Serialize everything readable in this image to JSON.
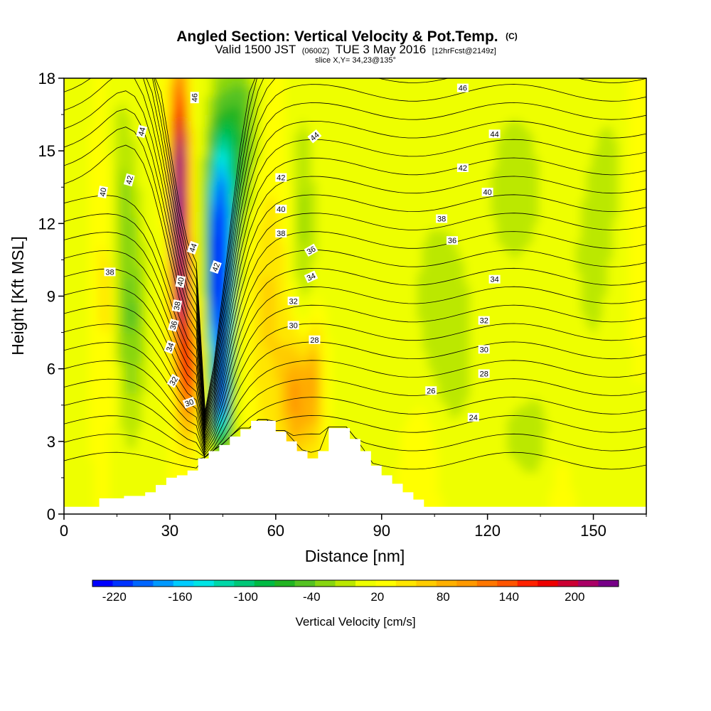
{
  "chart_data": {
    "type": "heatmap",
    "title": "Angled Section: Vertical Velocity & Pot.Temp.",
    "title_mark": "(C)",
    "subtitle_prefix": "Valid 1500 JST",
    "subtitle_utc": "(0600Z)",
    "subtitle_date": "TUE 3 May 2016",
    "subtitle_fcst": "[12hrFcst@2149z]",
    "slice_label": "slice X,Y= 34,23@135°",
    "xlabel": "Distance [nm]",
    "ylabel": "Height [Kft MSL]",
    "xlim": [
      0,
      165
    ],
    "ylim": [
      0,
      18
    ],
    "xticks": [
      "0",
      "30",
      "60",
      "90",
      "120",
      "150"
    ],
    "xtick_values": [
      0,
      30,
      60,
      90,
      120,
      150
    ],
    "yticks": [
      "0",
      "3",
      "6",
      "9",
      "12",
      "15",
      "18"
    ],
    "ytick_values": [
      0,
      3,
      6,
      9,
      12,
      15,
      18
    ],
    "colorbar": {
      "title": "Vertical Velocity [cm/s]",
      "labels": [
        "-220",
        "-160",
        "-100",
        "-40",
        "20",
        "80",
        "140",
        "200"
      ],
      "label_values": [
        -220,
        -160,
        -100,
        -40,
        20,
        80,
        140,
        200
      ],
      "range": [
        -240,
        240
      ],
      "colors": [
        "#0000ff",
        "#0033ff",
        "#0066ff",
        "#0099ff",
        "#00ccff",
        "#00e5e5",
        "#00d8a8",
        "#00c878",
        "#00bb44",
        "#22b422",
        "#55c222",
        "#88d611",
        "#bbe800",
        "#eeff00",
        "#ffff00",
        "#ffe600",
        "#ffcc00",
        "#ffb000",
        "#ff9900",
        "#ff7700",
        "#ff5500",
        "#ff2200",
        "#ee0000",
        "#cc0033",
        "#aa0066",
        "#770088"
      ]
    },
    "terrain_kft": [
      [
        0,
        0.3
      ],
      [
        10,
        0.3
      ],
      [
        10,
        0.65
      ],
      [
        17,
        0.65
      ],
      [
        17,
        0.75
      ],
      [
        23,
        0.75
      ],
      [
        23,
        0.9
      ],
      [
        26,
        0.9
      ],
      [
        26,
        1.2
      ],
      [
        29,
        1.2
      ],
      [
        29,
        1.5
      ],
      [
        32,
        1.5
      ],
      [
        32,
        1.6
      ],
      [
        35,
        1.6
      ],
      [
        35,
        1.8
      ],
      [
        38,
        1.8
      ],
      [
        38,
        2.3
      ],
      [
        41,
        2.3
      ],
      [
        41,
        2.6
      ],
      [
        44,
        2.6
      ],
      [
        44,
        2.85
      ],
      [
        47,
        2.85
      ],
      [
        47,
        3.2
      ],
      [
        50,
        3.2
      ],
      [
        50,
        3.5
      ],
      [
        53,
        3.5
      ],
      [
        53,
        3.85
      ],
      [
        60,
        3.85
      ],
      [
        60,
        3.4
      ],
      [
        63,
        3.4
      ],
      [
        63,
        3.0
      ],
      [
        66,
        3.0
      ],
      [
        66,
        2.6
      ],
      [
        69,
        2.6
      ],
      [
        69,
        2.3
      ],
      [
        72,
        2.3
      ],
      [
        72,
        2.6
      ],
      [
        75,
        2.6
      ],
      [
        75,
        3.55
      ],
      [
        81,
        3.55
      ],
      [
        81,
        3.1
      ],
      [
        84,
        3.1
      ],
      [
        84,
        2.6
      ],
      [
        87,
        2.6
      ],
      [
        87,
        2.0
      ],
      [
        90,
        2.0
      ],
      [
        90,
        1.6
      ],
      [
        93,
        1.6
      ],
      [
        93,
        1.25
      ],
      [
        96,
        1.25
      ],
      [
        96,
        0.9
      ],
      [
        99,
        0.9
      ],
      [
        99,
        0.6
      ],
      [
        102,
        0.6
      ],
      [
        102,
        0.3
      ],
      [
        165,
        0.3
      ]
    ],
    "velocity_features": [
      {
        "type": "updraft",
        "x": 33,
        "y": 10.5,
        "w_cm_s": 230
      },
      {
        "type": "updraft",
        "x": 33,
        "y": 15,
        "w_cm_s": 120
      },
      {
        "type": "downdraft",
        "x": 44,
        "y": 8.5,
        "w_cm_s": -230
      },
      {
        "type": "downdraft",
        "x": 45,
        "y": 12,
        "w_cm_s": -130
      },
      {
        "type": "downdraft",
        "x": 19,
        "y": 8,
        "w_cm_s": -40
      },
      {
        "type": "updraft",
        "x": 66,
        "y": 4.5,
        "w_cm_s": 90
      },
      {
        "type": "downdraft",
        "x": 107,
        "y": 9,
        "w_cm_s": -20
      }
    ],
    "isentropes_C": [
      22,
      23,
      24,
      25,
      26,
      27,
      28,
      29,
      30,
      31,
      32,
      33,
      34,
      35,
      36,
      37,
      38,
      39,
      40,
      41,
      42,
      43,
      44,
      45,
      46
    ],
    "contour_labels": [
      {
        "text": "46",
        "x": 37,
        "y": 17.2,
        "r": -90
      },
      {
        "text": "44",
        "x": 22,
        "y": 15.8,
        "r": -75
      },
      {
        "text": "42",
        "x": 18.5,
        "y": 13.8,
        "r": -75
      },
      {
        "text": "40",
        "x": 11,
        "y": 13.3,
        "r": -80
      },
      {
        "text": "38",
        "x": 13,
        "y": 10
      },
      {
        "text": "44",
        "x": 36.5,
        "y": 11,
        "r": -70
      },
      {
        "text": "42",
        "x": 43,
        "y": 10.2,
        "r": -70
      },
      {
        "text": "40",
        "x": 33,
        "y": 9.6,
        "r": -80
      },
      {
        "text": "38",
        "x": 32,
        "y": 8.6,
        "r": -80
      },
      {
        "text": "36",
        "x": 31,
        "y": 7.8,
        "r": -75
      },
      {
        "text": "34",
        "x": 30,
        "y": 6.9,
        "r": -70
      },
      {
        "text": "32",
        "x": 31,
        "y": 5.5,
        "r": -60
      },
      {
        "text": "30",
        "x": 35.5,
        "y": 4.6,
        "r": -20
      },
      {
        "text": "44",
        "x": 71,
        "y": 15.6,
        "r": -40
      },
      {
        "text": "42",
        "x": 61.5,
        "y": 13.9
      },
      {
        "text": "40",
        "x": 61.5,
        "y": 12.6
      },
      {
        "text": "38",
        "x": 61.5,
        "y": 11.6
      },
      {
        "text": "36",
        "x": 70,
        "y": 10.9,
        "r": -30
      },
      {
        "text": "34",
        "x": 70,
        "y": 9.8,
        "r": -25
      },
      {
        "text": "32",
        "x": 65,
        "y": 8.8
      },
      {
        "text": "30",
        "x": 65,
        "y": 7.8
      },
      {
        "text": "28",
        "x": 71,
        "y": 7.2
      },
      {
        "text": "46",
        "x": 113,
        "y": 17.6
      },
      {
        "text": "44",
        "x": 122,
        "y": 15.7
      },
      {
        "text": "42",
        "x": 113,
        "y": 14.3
      },
      {
        "text": "40",
        "x": 120,
        "y": 13.3
      },
      {
        "text": "38",
        "x": 107,
        "y": 12.2
      },
      {
        "text": "36",
        "x": 110,
        "y": 11.3
      },
      {
        "text": "34",
        "x": 122,
        "y": 9.7
      },
      {
        "text": "32",
        "x": 119,
        "y": 8.0
      },
      {
        "text": "30",
        "x": 119,
        "y": 6.8
      },
      {
        "text": "28",
        "x": 119,
        "y": 5.8
      },
      {
        "text": "26",
        "x": 104,
        "y": 5.1
      },
      {
        "text": "24",
        "x": 116,
        "y": 4.0
      }
    ]
  }
}
